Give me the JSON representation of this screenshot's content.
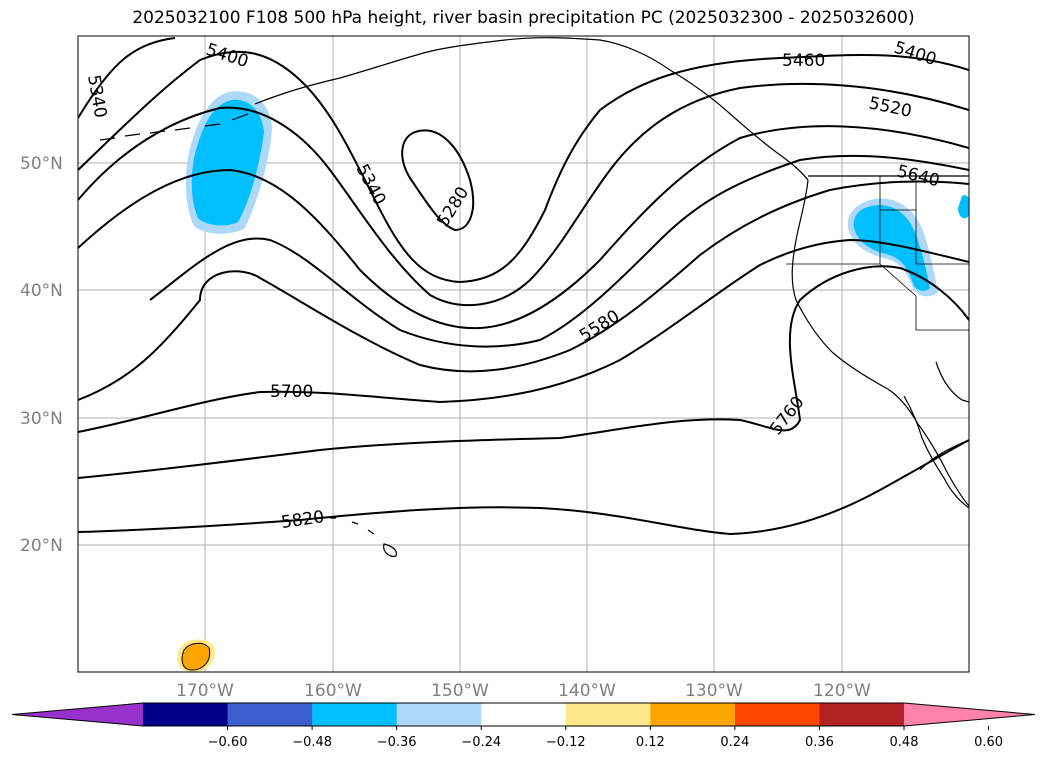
{
  "title": "2025032100 F108 500 hPa height, river basin precipitation PC (2025032300 - 2025032600)",
  "map": {
    "lat_labels": [
      "50°N",
      "40°N",
      "30°N",
      "20°N"
    ],
    "lon_labels": [
      "170°W",
      "160°W",
      "150°W",
      "140°W",
      "130°W",
      "120°W"
    ],
    "contour_labels": [
      "5340",
      "5400",
      "5460",
      "5400",
      "5520",
      "5640",
      "5340",
      "5280",
      "5580",
      "5700",
      "5760",
      "5820"
    ],
    "gridlines": true
  },
  "colorbar": {
    "colors": [
      "#9932cc",
      "#00008b",
      "#3a5fcd",
      "#00bfff",
      "#add8f7",
      "#ffffff",
      "#ffe98a",
      "#ffa500",
      "#ff4500",
      "#b22222",
      "#ff82ab"
    ],
    "tick_labels": [
      "−0.60",
      "−0.48",
      "−0.36",
      "−0.24",
      "−0.12",
      "0.12",
      "0.24",
      "0.36",
      "0.48",
      "0.60"
    ]
  }
}
